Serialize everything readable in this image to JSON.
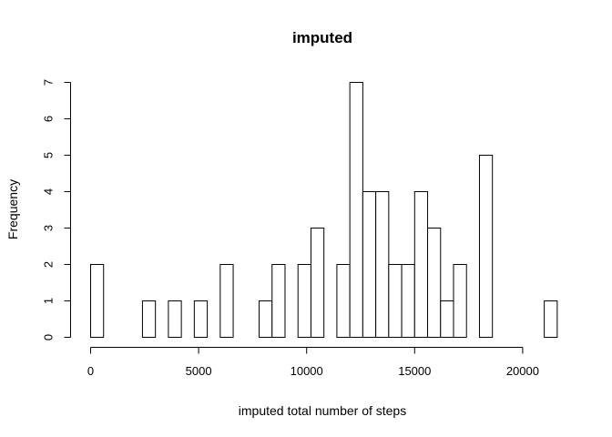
{
  "chart_data": {
    "type": "histogram",
    "title": "imputed",
    "xlabel": "imputed total number of steps",
    "ylabel": "Frequency",
    "bin_width": 600,
    "x": [
      0,
      600,
      1200,
      1800,
      2400,
      3000,
      3600,
      4200,
      4800,
      5400,
      6000,
      6600,
      7200,
      7800,
      8400,
      9000,
      9600,
      10200,
      10800,
      11400,
      12000,
      12600,
      13200,
      13800,
      14400,
      15000,
      15600,
      16200,
      16800,
      17400,
      18000,
      18600,
      19200,
      19800,
      20400,
      21000
    ],
    "values": [
      2,
      0,
      0,
      0,
      1,
      0,
      1,
      0,
      1,
      0,
      2,
      0,
      0,
      1,
      2,
      0,
      2,
      3,
      0,
      2,
      7,
      4,
      4,
      2,
      2,
      4,
      3,
      1,
      2,
      0,
      5,
      0,
      0,
      0,
      0,
      1
    ],
    "xticks": [
      0,
      5000,
      10000,
      15000,
      20000
    ],
    "yticks": [
      0,
      1,
      2,
      3,
      4,
      5,
      6,
      7
    ],
    "xlim": [
      0,
      21600
    ],
    "ylim": [
      0,
      7
    ],
    "grid": false,
    "bar_fill": "#ffffff",
    "bar_stroke": "#000000"
  }
}
